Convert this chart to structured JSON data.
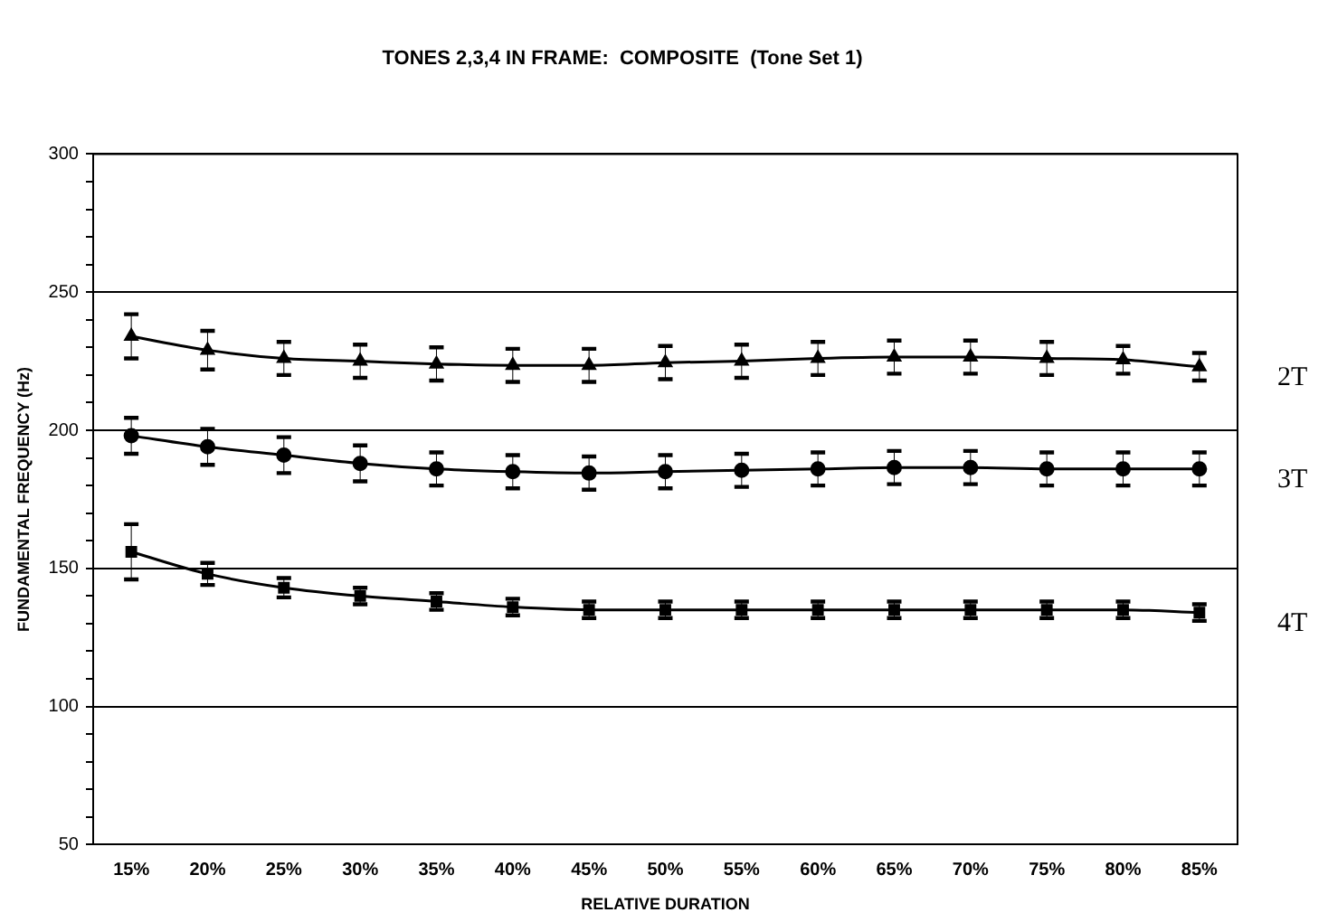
{
  "chart_data": {
    "type": "line",
    "title": "TONES 2,3,4 IN FRAME:  COMPOSITE  (Tone Set 1)",
    "xlabel": "RELATIVE DURATION",
    "ylabel": "FUNDAMENTAL FREQUENCY (Hz)",
    "categories": [
      "15%",
      "20%",
      "25%",
      "30%",
      "35%",
      "40%",
      "45%",
      "50%",
      "55%",
      "60%",
      "65%",
      "70%",
      "75%",
      "80%",
      "85%"
    ],
    "ylim": [
      50,
      300
    ],
    "yticks": [
      50,
      {
        "value": 60,
        "label": null
      },
      {
        "value": 70,
        "label": null
      },
      {
        "value": 80,
        "label": null
      },
      {
        "value": 90,
        "label": null
      },
      100,
      {
        "value": 110,
        "label": null
      },
      {
        "value": 120,
        "label": null
      },
      {
        "value": 130,
        "label": null
      },
      {
        "value": 140,
        "label": null
      },
      150,
      {
        "value": 160,
        "label": null
      },
      {
        "value": 170,
        "label": null
      },
      {
        "value": 180,
        "label": null
      },
      {
        "value": 190,
        "label": null
      },
      200,
      {
        "value": 210,
        "label": null
      },
      {
        "value": 220,
        "label": null
      },
      {
        "value": 230,
        "label": null
      },
      {
        "value": 240,
        "label": null
      },
      250,
      {
        "value": 260,
        "label": null
      },
      {
        "value": 270,
        "label": null
      },
      {
        "value": 280,
        "label": null
      },
      {
        "value": 290,
        "label": null
      },
      300
    ],
    "grid": "y",
    "legend": false,
    "line_style": "solid",
    "series": [
      {
        "name": "2T",
        "color": "#000000",
        "marker": "triangle",
        "values": [
          234,
          229,
          226,
          225,
          224,
          223.5,
          223.5,
          224.5,
          225,
          226,
          226.5,
          226.5,
          226,
          225.5,
          223
        ],
        "errors": [
          8,
          7,
          6,
          6,
          6,
          6,
          6,
          6,
          6,
          6,
          6,
          6,
          6,
          5,
          5
        ]
      },
      {
        "name": "3T",
        "color": "#000000",
        "marker": "circle",
        "values": [
          198,
          194,
          191,
          188,
          186,
          185,
          184.5,
          185,
          185.5,
          186,
          186.5,
          186.5,
          186,
          186,
          186
        ],
        "errors": [
          6.5,
          6.5,
          6.5,
          6.5,
          6,
          6,
          6,
          6,
          6,
          6,
          6,
          6,
          6,
          6,
          6
        ]
      },
      {
        "name": "4T",
        "color": "#000000",
        "marker": "square",
        "values": [
          156,
          148,
          143,
          140,
          138,
          136,
          135,
          135,
          135,
          135,
          135,
          135,
          135,
          135,
          134
        ],
        "errors": [
          10,
          4,
          3.5,
          3,
          3,
          3,
          3,
          3,
          3,
          3,
          3,
          3,
          3,
          3,
          3
        ]
      }
    ]
  }
}
